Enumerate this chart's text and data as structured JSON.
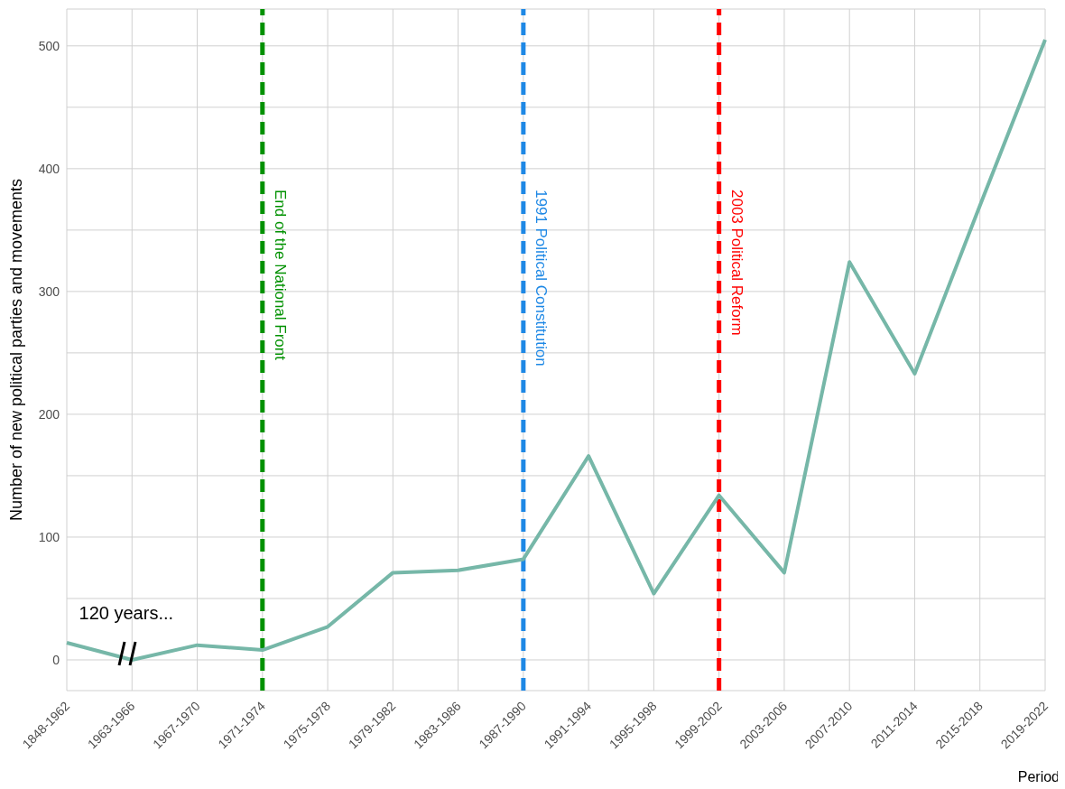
{
  "chart_data": {
    "type": "line",
    "xlabel": "Period",
    "ylabel": "Number of new political parties and movements",
    "categories": [
      "1848-1962",
      "1963-1966",
      "1967-1970",
      "1971-1974",
      "1975-1978",
      "1979-1982",
      "1983-1986",
      "1987-1990",
      "1991-1994",
      "1995-1998",
      "1999-2002",
      "2003-2006",
      "2007-2010",
      "2011-2014",
      "2015-2018",
      "2019-2022"
    ],
    "series": [
      {
        "color": "#76b7a8",
        "values": [
          14,
          0,
          12,
          8,
          27,
          71,
          73,
          82,
          166,
          54,
          134,
          71,
          324,
          233,
          370,
          505
        ]
      }
    ],
    "ylim": [
      -25,
      530
    ],
    "yticks": [
      0,
      {
        "value": 50,
        "label": null
      },
      100,
      {
        "value": 150,
        "label": null
      },
      200,
      {
        "value": 250,
        "label": null
      },
      300,
      {
        "value": 350,
        "label": null
      },
      400,
      {
        "value": 450,
        "label": null
      },
      500
    ],
    "grid": true,
    "marker": "none",
    "line_style": "solid",
    "ref_lines": [
      {
        "axis": "x",
        "value": "1971-1974",
        "label": "End of the National Front",
        "color": "#009100",
        "line_style": "dashed"
      },
      {
        "axis": "x",
        "value": "1987-1990",
        "label": "1991 Political Constitution",
        "color": "#1e88e5",
        "line_style": "dashed"
      },
      {
        "axis": "x",
        "value": "1999-2002",
        "label": "2003 Political Reform",
        "color": "#ff0000",
        "line_style": "dashed"
      }
    ],
    "annotations": [
      "120 years..."
    ]
  }
}
